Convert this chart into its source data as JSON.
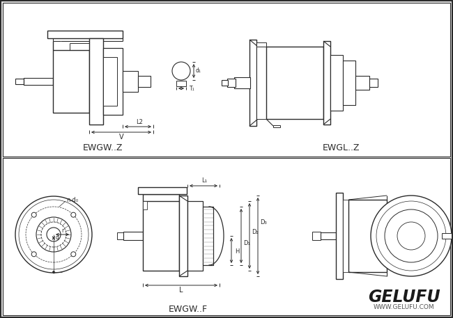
{
  "bg_color": "#e8e8e8",
  "panel_bg": "#ffffff",
  "line_color": "#2a2a2a",
  "dim_color": "#2a2a2a",
  "centerline_color": "#999999",
  "title1": "EWGW..Z",
  "title2": "EWGL..Z",
  "title3": "EWGW..F",
  "brand": "GELUFU",
  "website": "WWW.GELUFU.COM"
}
